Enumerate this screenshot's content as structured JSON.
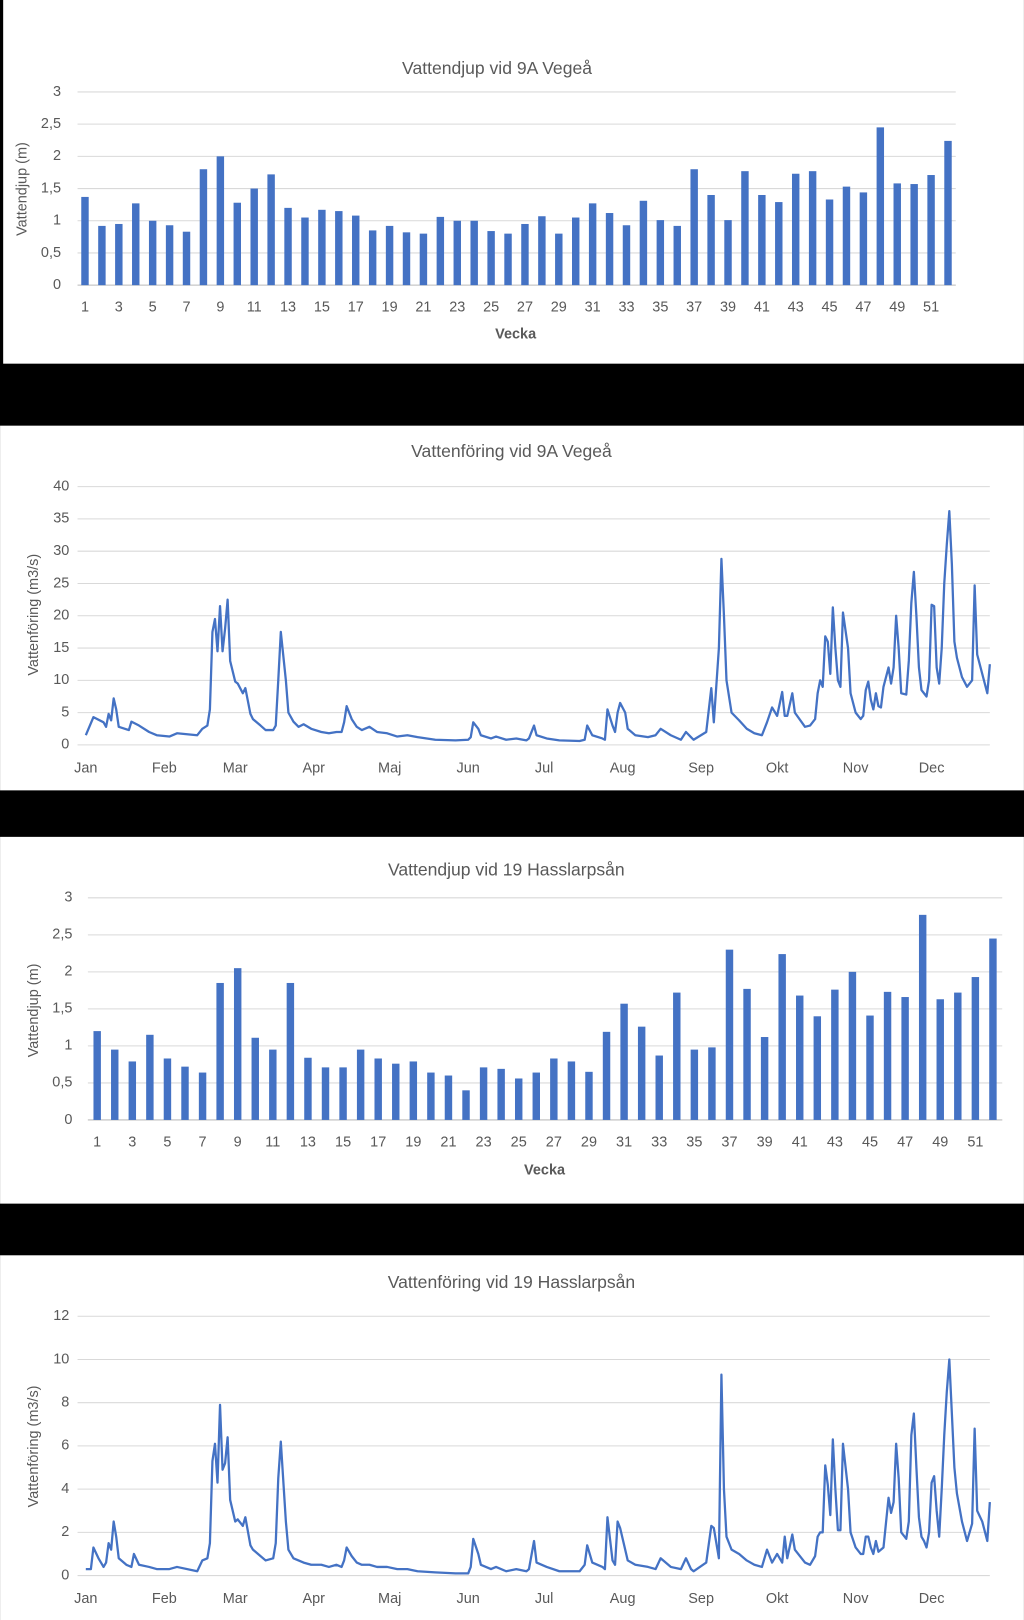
{
  "chart_data": [
    {
      "type": "bar",
      "title": "Vattendjup vid 9A Vegeå",
      "x_label": "Vecka",
      "y_label": "Vattendjup (m)",
      "color": "#4472c4",
      "grid": true,
      "categories": [
        1,
        null,
        3,
        null,
        5,
        null,
        7,
        null,
        9,
        null,
        11,
        null,
        13,
        null,
        15,
        null,
        17,
        null,
        19,
        null,
        21,
        null,
        23,
        null,
        25,
        null,
        27,
        null,
        29,
        null,
        31,
        null,
        33,
        null,
        35,
        null,
        37,
        null,
        39,
        null,
        41,
        null,
        43,
        null,
        45,
        null,
        47,
        null,
        49,
        null,
        51,
        null
      ],
      "values": [
        1.37,
        0.92,
        0.95,
        1.27,
        1.0,
        0.93,
        0.83,
        1.8,
        2.0,
        1.28,
        1.5,
        1.72,
        1.2,
        1.05,
        1.17,
        1.15,
        1.08,
        0.85,
        0.92,
        0.82,
        0.8,
        1.06,
        1.0,
        1.0,
        0.84,
        0.8,
        0.95,
        1.07,
        0.8,
        1.05,
        1.27,
        1.12,
        0.93,
        1.31,
        1.01,
        0.92,
        1.8,
        1.4,
        1.01,
        1.77,
        1.4,
        1.29,
        1.73,
        1.77,
        1.33,
        1.53,
        1.44,
        2.45,
        1.58,
        1.57,
        1.71,
        2.24
      ],
      "ylim": [
        0,
        3
      ],
      "yticks": [
        0,
        {
          "value": 0.5,
          "label": "0,5"
        },
        1,
        {
          "value": 1.5,
          "label": "1,5"
        },
        2,
        {
          "value": 2.5,
          "label": "2,5"
        },
        3
      ]
    },
    {
      "type": "line",
      "title": "Vattenföring vid 9A Vegeå",
      "y_label": "Vattenföring (m3/s)",
      "color": "#4472c4",
      "grid": true,
      "x": [
        1,
        4,
        8,
        9,
        10,
        11,
        12,
        13,
        14,
        18,
        19,
        22,
        26,
        29,
        34,
        37,
        45,
        47,
        49,
        50,
        51,
        52,
        53,
        54,
        55,
        56,
        57,
        58,
        60,
        61,
        63,
        64,
        66,
        67,
        70,
        72,
        75,
        76,
        77,
        78,
        80,
        81,
        83,
        85,
        87,
        90,
        94,
        97,
        100,
        102,
        103,
        104,
        106,
        108,
        110,
        113,
        116,
        120,
        124,
        128,
        132,
        139,
        147,
        152,
        153,
        154,
        156,
        157,
        161,
        163,
        167,
        171,
        175,
        176,
        178,
        179,
        183,
        188,
        196,
        198,
        199,
        201,
        205,
        206,
        207,
        209,
        210,
        211,
        212,
        214,
        215,
        218,
        223,
        226,
        228,
        232,
        236,
        238,
        240,
        241,
        246,
        248,
        249,
        251,
        252,
        253,
        254,
        256,
        259,
        262,
        265,
        268,
        270,
        272,
        274,
        276,
        277,
        278,
        280,
        281,
        285,
        287,
        289,
        290,
        291,
        292,
        293,
        294,
        295,
        296,
        297,
        298,
        299,
        300,
        302,
        303,
        305,
        307,
        308,
        309,
        310,
        311,
        312,
        313,
        314,
        315,
        316,
        318,
        319,
        320,
        321,
        322,
        323,
        325,
        326,
        327,
        328,
        329,
        330,
        331,
        332,
        333,
        334,
        335,
        336,
        337,
        338,
        339,
        340,
        341,
        342,
        343,
        344,
        345,
        347,
        349,
        351,
        352,
        353,
        355,
        357,
        358
      ],
      "values": [
        1.5,
        4.3,
        3.5,
        2.8,
        4.8,
        3.8,
        7.2,
        5.5,
        2.8,
        2.3,
        3.6,
        3,
        2,
        1.5,
        1.3,
        1.8,
        1.5,
        2.5,
        3,
        5.5,
        17.5,
        19.5,
        14.5,
        21.5,
        14.5,
        18,
        22.5,
        13,
        9.8,
        9.5,
        8,
        8.8,
        4.8,
        4,
        3,
        2.3,
        2.3,
        3,
        10,
        17.5,
        10,
        5,
        3.6,
        2.8,
        3.2,
        2.5,
        2,
        1.8,
        2,
        2,
        3.5,
        6,
        4,
        2.8,
        2.3,
        2.8,
        2,
        1.8,
        1.3,
        1.5,
        1.2,
        0.8,
        0.7,
        0.8,
        1.2,
        3.5,
        2.5,
        1.5,
        1,
        1.3,
        0.8,
        1,
        0.7,
        1,
        3,
        1.5,
        1,
        0.7,
        0.6,
        0.8,
        3,
        1.5,
        1,
        0.8,
        5.5,
        3,
        2,
        5,
        6.5,
        5,
        2.5,
        1.5,
        1.2,
        1.5,
        2.5,
        1.5,
        0.8,
        2,
        1.2,
        0.8,
        2,
        8.8,
        3.5,
        15,
        28.8,
        20,
        10,
        5,
        3.8,
        2.5,
        1.8,
        1.5,
        3.5,
        5.8,
        4.5,
        8.2,
        4.5,
        4.5,
        8,
        5,
        2.8,
        3,
        4,
        8,
        10,
        9,
        16.8,
        16,
        11,
        21.3,
        15,
        10,
        9,
        20.5,
        15,
        8,
        5,
        4,
        4.5,
        8.5,
        9.8,
        7,
        5.5,
        8,
        6,
        5.8,
        9,
        12,
        9.5,
        12,
        20,
        15,
        8,
        7.8,
        13,
        22,
        26.8,
        20,
        12,
        8.5,
        8,
        7.5,
        10,
        21.7,
        21.5,
        12,
        9.5,
        15,
        25,
        31,
        36.2,
        28,
        16,
        13.5,
        10.5,
        9,
        10,
        24.7,
        14,
        11,
        8,
        12.5
      ],
      "xlim": [
        1,
        358
      ],
      "xticks": [
        {
          "value": 1,
          "label": "Jan"
        },
        {
          "value": 32,
          "label": "Feb"
        },
        {
          "value": 60,
          "label": "Mar"
        },
        {
          "value": 91,
          "label": "Apr"
        },
        {
          "value": 121,
          "label": "Maj"
        },
        {
          "value": 152,
          "label": "Jun"
        },
        {
          "value": 182,
          "label": "Jul"
        },
        {
          "value": 213,
          "label": "Aug"
        },
        {
          "value": 244,
          "label": "Sep"
        },
        {
          "value": 274,
          "label": "Okt"
        },
        {
          "value": 305,
          "label": "Nov"
        },
        {
          "value": 335,
          "label": "Dec"
        }
      ],
      "ylim": [
        0,
        40
      ],
      "yticks": [
        0,
        5,
        10,
        15,
        20,
        25,
        30,
        35,
        40
      ]
    },
    {
      "type": "bar",
      "title": "Vattendjup vid 19 Hasslarpsån",
      "x_label": "Vecka",
      "y_label": "Vattendjup (m)",
      "color": "#4472c4",
      "grid": true,
      "categories": [
        1,
        null,
        3,
        null,
        5,
        null,
        7,
        null,
        9,
        null,
        11,
        null,
        13,
        null,
        15,
        null,
        17,
        null,
        19,
        null,
        21,
        null,
        23,
        null,
        25,
        null,
        27,
        null,
        29,
        null,
        31,
        null,
        33,
        null,
        35,
        null,
        37,
        null,
        39,
        null,
        41,
        null,
        43,
        null,
        45,
        null,
        47,
        null,
        49,
        null,
        51,
        null
      ],
      "values": [
        1.2,
        0.95,
        0.79,
        1.15,
        0.83,
        0.72,
        0.64,
        1.85,
        2.05,
        1.11,
        0.95,
        1.85,
        0.84,
        0.71,
        0.71,
        0.95,
        0.83,
        0.76,
        0.79,
        0.64,
        0.6,
        0.4,
        0.71,
        0.69,
        0.56,
        0.64,
        0.83,
        0.79,
        0.65,
        1.19,
        1.57,
        1.26,
        0.87,
        1.72,
        0.95,
        0.98,
        2.3,
        1.77,
        1.12,
        2.24,
        1.68,
        1.4,
        1.76,
        2.0,
        1.41,
        1.73,
        1.66,
        2.77,
        1.63,
        1.72,
        1.93,
        2.45
      ],
      "ylim": [
        0,
        3
      ],
      "yticks": [
        0,
        {
          "value": 0.5,
          "label": "0,5"
        },
        1,
        {
          "value": 1.5,
          "label": "1,5"
        },
        2,
        {
          "value": 2.5,
          "label": "2,5"
        },
        3
      ]
    },
    {
      "type": "line",
      "title": "Vattenföring vid 19 Hasslarpsån",
      "y_label": "Vattenföring (m3/s)",
      "color": "#4472c4",
      "grid": true,
      "x": [
        1,
        3,
        4,
        6,
        8,
        9,
        10,
        11,
        12,
        13,
        14,
        17,
        19,
        20,
        22,
        26,
        29,
        34,
        37,
        45,
        47,
        49,
        50,
        51,
        52,
        53,
        54,
        55,
        56,
        57,
        58,
        60,
        61,
        63,
        64,
        66,
        67,
        70,
        72,
        75,
        76,
        77,
        78,
        80,
        81,
        83,
        85,
        87,
        90,
        94,
        97,
        100,
        102,
        103,
        104,
        106,
        108,
        110,
        113,
        116,
        120,
        124,
        128,
        132,
        139,
        147,
        152,
        153,
        154,
        156,
        157,
        161,
        163,
        167,
        171,
        175,
        176,
        178,
        179,
        183,
        188,
        196,
        198,
        199,
        201,
        205,
        206,
        207,
        209,
        210,
        211,
        212,
        214,
        215,
        218,
        223,
        226,
        228,
        232,
        236,
        238,
        240,
        241,
        246,
        248,
        249,
        251,
        252,
        253,
        254,
        256,
        259,
        262,
        265,
        268,
        270,
        272,
        274,
        276,
        277,
        278,
        280,
        281,
        285,
        287,
        289,
        290,
        291,
        292,
        293,
        294,
        295,
        296,
        297,
        298,
        299,
        300,
        302,
        303,
        305,
        307,
        308,
        309,
        310,
        311,
        312,
        313,
        314,
        315,
        316,
        318,
        319,
        320,
        321,
        322,
        323,
        325,
        326,
        327,
        328,
        329,
        330,
        331,
        332,
        333,
        334,
        335,
        336,
        337,
        338,
        339,
        340,
        341,
        342,
        343,
        344,
        345,
        347,
        349,
        351,
        352,
        353,
        355,
        357,
        358
      ],
      "values": [
        0.3,
        0.3,
        1.3,
        0.8,
        0.4,
        0.6,
        1.5,
        1.2,
        2.5,
        1.8,
        0.8,
        0.5,
        0.4,
        1.0,
        0.5,
        0.4,
        0.3,
        0.3,
        0.4,
        0.2,
        0.7,
        0.8,
        1.5,
        5.3,
        6.1,
        4.3,
        7.9,
        4.9,
        5.2,
        6.4,
        3.5,
        2.5,
        2.6,
        2.3,
        2.7,
        1.4,
        1.2,
        0.9,
        0.7,
        0.8,
        1.5,
        4.5,
        6.2,
        2.5,
        1.2,
        0.8,
        0.7,
        0.6,
        0.5,
        0.5,
        0.4,
        0.5,
        0.4,
        0.7,
        1.3,
        0.9,
        0.6,
        0.5,
        0.5,
        0.4,
        0.4,
        0.3,
        0.3,
        0.2,
        0.15,
        0.1,
        0.1,
        0.4,
        1.7,
        1.0,
        0.5,
        0.3,
        0.4,
        0.2,
        0.3,
        0.2,
        0.3,
        1.6,
        0.6,
        0.4,
        0.2,
        0.2,
        0.5,
        1.4,
        0.6,
        0.4,
        0.3,
        2.7,
        0.7,
        0.5,
        2.5,
        2.2,
        1.2,
        0.7,
        0.5,
        0.4,
        0.3,
        0.8,
        0.4,
        0.3,
        0.8,
        0.3,
        0.2,
        0.6,
        2.3,
        2.2,
        0.8,
        9.3,
        4,
        1.8,
        1.2,
        1.0,
        0.7,
        0.5,
        0.4,
        1.2,
        0.6,
        1.0,
        0.6,
        1.8,
        0.8,
        1.9,
        1.2,
        0.6,
        0.5,
        0.9,
        1.8,
        2.0,
        2.0,
        5.1,
        4.2,
        2.8,
        6.3,
        4.0,
        2.1,
        2.1,
        6.1,
        4.0,
        2.0,
        1.3,
        1.0,
        1.0,
        1.8,
        1.8,
        1.3,
        1.0,
        1.6,
        1.1,
        1.2,
        1.3,
        3.6,
        2.9,
        3.4,
        6.1,
        4.5,
        2.0,
        1.7,
        2.5,
        6.5,
        7.5,
        5,
        2.7,
        1.8,
        1.6,
        1.3,
        2.0,
        4.3,
        4.6,
        3.0,
        1.8,
        4.0,
        6.5,
        8.5,
        10,
        7.5,
        5,
        3.8,
        2.5,
        1.6,
        2.4,
        6.8,
        3.0,
        2.5,
        1.6,
        3.4
      ],
      "xlim": [
        1,
        358
      ],
      "xticks": [
        {
          "value": 1,
          "label": "Jan"
        },
        {
          "value": 32,
          "label": "Feb"
        },
        {
          "value": 60,
          "label": "Mar"
        },
        {
          "value": 91,
          "label": "Apr"
        },
        {
          "value": 121,
          "label": "Maj"
        },
        {
          "value": 152,
          "label": "Jun"
        },
        {
          "value": 182,
          "label": "Jul"
        },
        {
          "value": 213,
          "label": "Aug"
        },
        {
          "value": 244,
          "label": "Sep"
        },
        {
          "value": 274,
          "label": "Okt"
        },
        {
          "value": 305,
          "label": "Nov"
        },
        {
          "value": 335,
          "label": "Dec"
        }
      ],
      "ylim": [
        0,
        12
      ],
      "yticks": [
        0,
        2,
        4,
        6,
        8,
        10,
        12
      ]
    }
  ]
}
